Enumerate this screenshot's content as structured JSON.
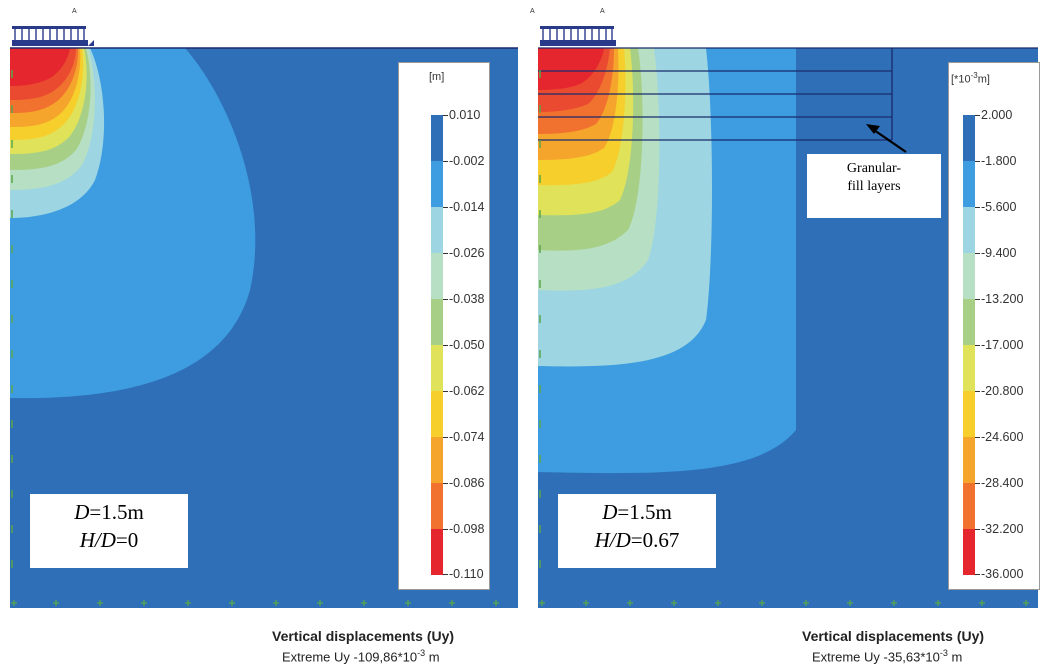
{
  "panels": [
    {
      "legend": {
        "unit": "[m]",
        "labels": [
          "0.010",
          "-0.002",
          "-0.014",
          "-0.026",
          "-0.038",
          "-0.050",
          "-0.062",
          "-0.074",
          "-0.086",
          "-0.098",
          "-0.110"
        ]
      },
      "case_line1": "D=1.5m",
      "case_line2": "H/D=0",
      "title": "Vertical displacements (Uy)",
      "extreme_prefix": "Extreme Uy -109,86*10",
      "extreme_exp": "-3",
      "extreme_suffix": " m"
    },
    {
      "legend": {
        "unit_base": "[*10",
        "unit_exp": "-3",
        "unit_suffix": "m]",
        "labels": [
          "2.000",
          "-1.800",
          "-5.600",
          "-9.400",
          "-13.200",
          "-17.000",
          "-20.800",
          "-24.600",
          "-28.400",
          "-32.200",
          "-36.000"
        ]
      },
      "case_line1": "D=1.5m",
      "case_line2": "H/D=0.67",
      "title": "Vertical displacements (Uy)",
      "extreme_prefix": "Extreme Uy -35,63*10",
      "extreme_exp": "-3",
      "extreme_suffix": " m",
      "annotation_line1": "Granular-",
      "annotation_line2": "fill layers"
    }
  ],
  "footing_label": "A",
  "colors": {
    "band_top": "#2f6fb8",
    "band1": "#3d9de0",
    "band2": "#9dd6e2",
    "band3": "#b7dfc4",
    "band4": "#a8cf86",
    "band5": "#e0e35a",
    "band6": "#f6cf2c",
    "band7": "#f6a52c",
    "band8": "#f1722f",
    "band9": "#ea4a30",
    "band10": "#e6262e"
  }
}
